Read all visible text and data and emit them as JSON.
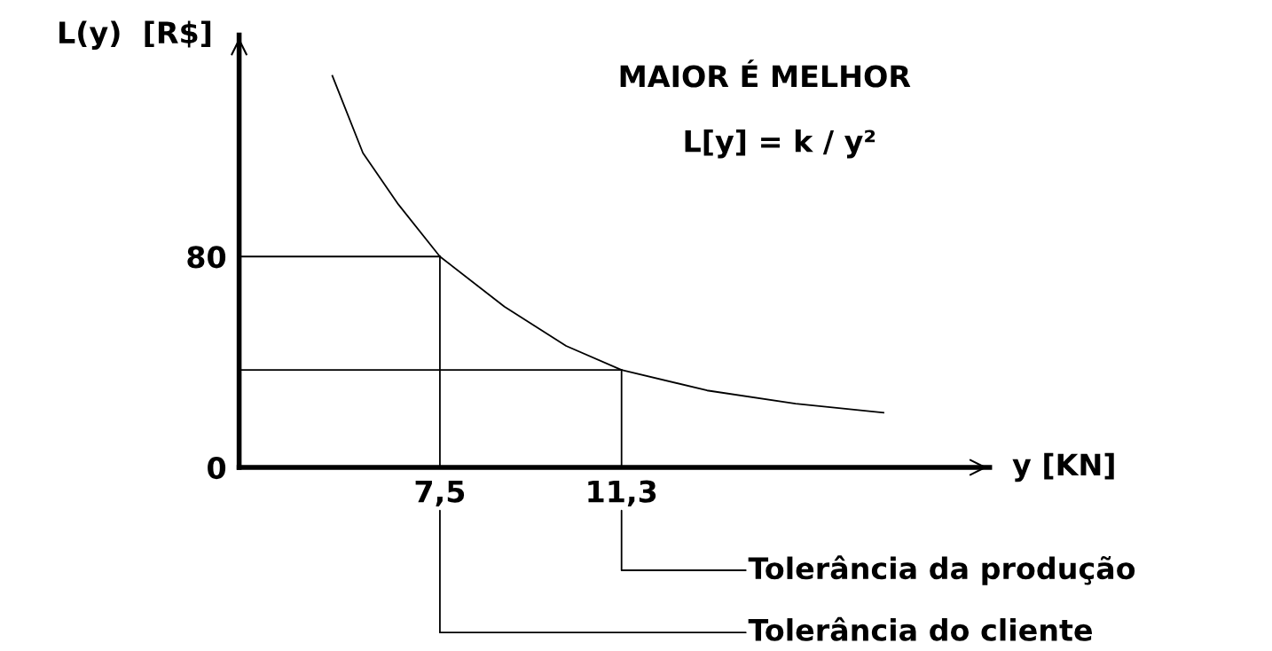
{
  "chart_data": {
    "type": "line",
    "title": "MAIOR É MELHOR",
    "xlabel": "y [KN]",
    "ylabel": "L(y)  [R$]",
    "annotations": [
      "L[y] = k / y²",
      "Tolerância do cliente",
      "Tolerância da produção"
    ],
    "x": [
      5.25,
      5.89,
      6.63,
      7.5,
      8.85,
      10.14,
      11.3,
      13.09,
      14.94,
      16.78
    ],
    "series": [
      {
        "color": "#000000",
        "values": [
          148.6,
          119.3,
          99.8,
          80,
          61.0,
          46.1,
          37.0,
          29.2,
          24.2,
          20.8
        ]
      }
    ],
    "xlim": [
      3.3,
      19
    ],
    "ylim": [
      0,
      164
    ],
    "xticks": [
      {
        "value": 7.5,
        "label": "7,5"
      },
      {
        "value": 11.3,
        "label": "11,3"
      }
    ],
    "yticks": [
      0,
      80
    ],
    "ref_lines": [
      {
        "axis": "x",
        "value": 7.5
      },
      {
        "axis": "x",
        "value": 11.3
      },
      {
        "axis": "y",
        "value": 80
      },
      {
        "axis": "y",
        "value": 37.0
      }
    ],
    "grid": false,
    "legend": false,
    "marker": "none",
    "line_style": "solid"
  }
}
